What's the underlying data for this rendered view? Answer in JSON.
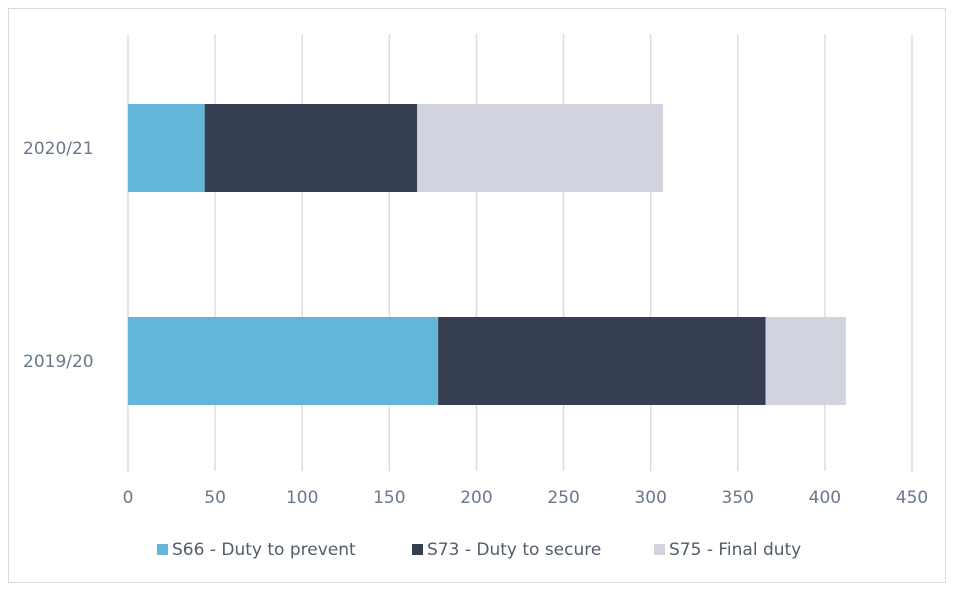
{
  "chart_data": {
    "type": "bar",
    "orientation": "horizontal",
    "stacked": true,
    "categories": [
      "2020/21",
      "2019/20"
    ],
    "series": [
      {
        "name": "S66 - Duty to prevent",
        "values": [
          44,
          178
        ],
        "color": "#63b6da"
      },
      {
        "name": "S73 - Duty to secure",
        "values": [
          122,
          188
        ],
        "color": "#363f52"
      },
      {
        "name": "S75 - Final duty",
        "values": [
          141,
          46
        ],
        "color": "#d1d3de"
      }
    ],
    "xlim": [
      0,
      450
    ],
    "xticks": [
      "0",
      "50",
      "100",
      "150",
      "200",
      "250",
      "300",
      "350",
      "400",
      "450"
    ],
    "grid": "vertical",
    "legend": "bottom"
  }
}
